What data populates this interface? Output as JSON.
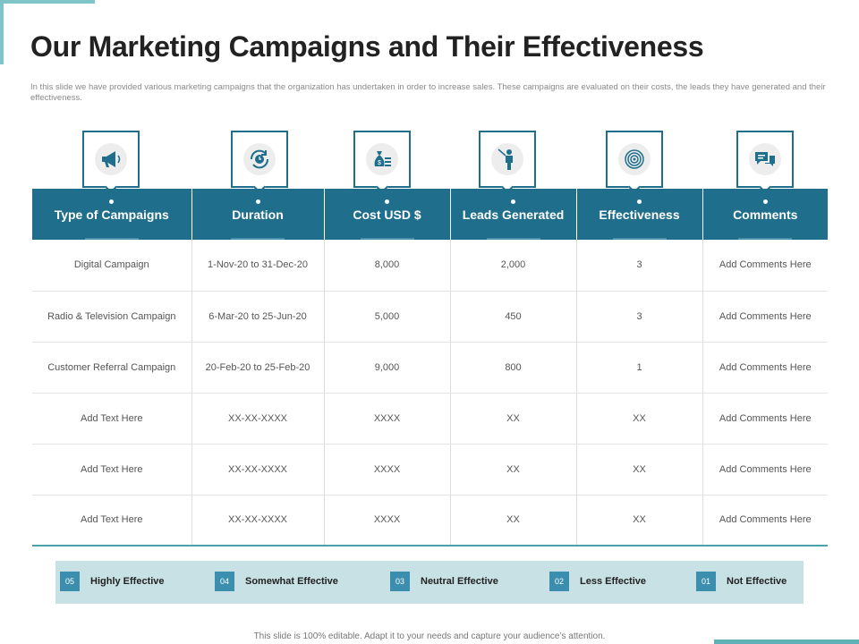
{
  "title": "Our Marketing Campaigns and Their Effectiveness",
  "subtitle": "In this slide we have provided various marketing campaigns that the organization has undertaken in order to increase sales. These campaigns are evaluated on their costs, the leads they have generated and their effectiveness.",
  "colors": {
    "header": "#1f6e8c",
    "accent": "#7fc4c9",
    "legend_bg": "#c7e1e4"
  },
  "icons": [
    "megaphone-icon",
    "clock-cycle-icon",
    "money-bag-icon",
    "presenter-icon",
    "target-icon",
    "chat-bubbles-icon"
  ],
  "table": {
    "headers": [
      "Type of Campaigns",
      "Duration",
      "Cost USD $",
      "Leads Generated",
      "Effectiveness",
      "Comments"
    ],
    "rows": [
      [
        "Digital  Campaign",
        "1-Nov-20 to 31-Dec-20",
        "8,000",
        "2,000",
        "3",
        "Add Comments Here"
      ],
      [
        "Radio & Television Campaign",
        "6-Mar-20 to 25-Jun-20",
        "5,000",
        "450",
        "3",
        "Add Comments Here"
      ],
      [
        "Customer Referral Campaign",
        "20-Feb-20 to 25-Feb-20",
        "9,000",
        "800",
        "1",
        "Add Comments Here"
      ],
      [
        "Add Text Here",
        "XX-XX-XXXX",
        "XXXX",
        "XX",
        "XX",
        "Add Comments Here"
      ],
      [
        "Add Text Here",
        "XX-XX-XXXX",
        "XXXX",
        "XX",
        "XX",
        "Add Comments Here"
      ],
      [
        "Add Text Here",
        "XX-XX-XXXX",
        "XXXX",
        "XX",
        "XX",
        "Add Comments Here"
      ]
    ]
  },
  "legend": [
    {
      "num": "05",
      "label": "Highly Effective"
    },
    {
      "num": "04",
      "label": "Somewhat Effective"
    },
    {
      "num": "03",
      "label": "Neutral Effective"
    },
    {
      "num": "02",
      "label": "Less Effective"
    },
    {
      "num": "01",
      "label": "Not Effective"
    }
  ],
  "footer": "This slide is 100% editable. Adapt it to your needs and capture your audience’s attention."
}
